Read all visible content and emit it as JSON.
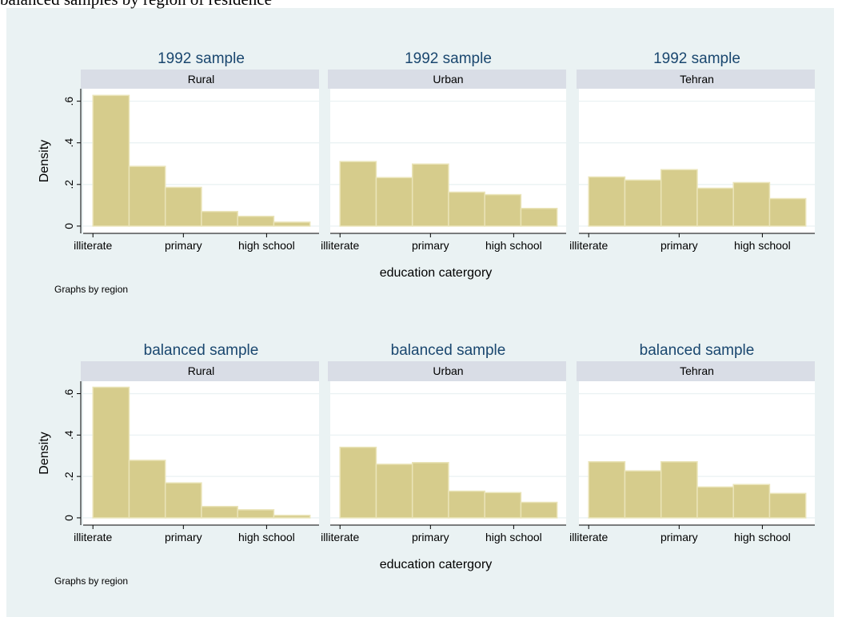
{
  "title": "balanced samples by region of residence",
  "chart_data": [
    {
      "type": "histogram",
      "y_label": "Density",
      "x_label": "education catergory",
      "note": "Graphs by region",
      "color": "#d6cc8c",
      "grid": true,
      "ylim": [
        -0.035,
        0.66
      ],
      "yticks": [
        0,
        {
          "value": 0.2,
          "label": ".2"
        },
        {
          "value": 0.4,
          "label": ".4"
        },
        {
          "value": 0.6,
          "label": ".6"
        }
      ],
      "xlim": [
        -0.27,
        6.25
      ],
      "xticks": [
        {
          "value": 0,
          "label": "illiterate"
        },
        {
          "value": 2.5,
          "label": "primary"
        },
        {
          "value": 4.8,
          "label": "high school"
        }
      ],
      "panels": [
        {
          "title": "1992 sample",
          "subtitle": "Rural",
          "bins": [
            0,
            1,
            2,
            3,
            4,
            5,
            6
          ],
          "values": [
            0.628,
            0.287,
            0.186,
            0.07,
            0.047,
            0.019
          ]
        },
        {
          "title": "1992 sample",
          "subtitle": "Urban",
          "bins": [
            0,
            1,
            2,
            3,
            4,
            5,
            6
          ],
          "values": [
            0.31,
            0.233,
            0.298,
            0.163,
            0.151,
            0.085
          ]
        },
        {
          "title": "1992 sample",
          "subtitle": "Tehran",
          "bins": [
            0,
            1,
            2,
            3,
            4,
            5,
            6
          ],
          "values": [
            0.236,
            0.221,
            0.271,
            0.182,
            0.209,
            0.132
          ]
        }
      ]
    },
    {
      "type": "histogram",
      "y_label": "Density",
      "x_label": "education catergory",
      "note": "Graphs by region",
      "color": "#d6cc8c",
      "grid": true,
      "ylim": [
        -0.035,
        0.66
      ],
      "yticks": [
        0,
        {
          "value": 0.2,
          "label": ".2"
        },
        {
          "value": 0.4,
          "label": ".4"
        },
        {
          "value": 0.6,
          "label": ".6"
        }
      ],
      "xlim": [
        -0.27,
        6.25
      ],
      "xticks": [
        {
          "value": 0,
          "label": "illiterate"
        },
        {
          "value": 2.5,
          "label": "primary"
        },
        {
          "value": 4.8,
          "label": "high school"
        }
      ],
      "panels": [
        {
          "title": "balanced sample",
          "subtitle": "Rural",
          "bins": [
            0,
            1,
            2,
            3,
            4,
            5,
            6
          ],
          "values": [
            0.631,
            0.278,
            0.169,
            0.055,
            0.039,
            0.012
          ]
        },
        {
          "title": "balanced sample",
          "subtitle": "Urban",
          "bins": [
            0,
            1,
            2,
            3,
            4,
            5,
            6
          ],
          "values": [
            0.341,
            0.259,
            0.267,
            0.129,
            0.122,
            0.075
          ]
        },
        {
          "title": "balanced sample",
          "subtitle": "Tehran",
          "bins": [
            0,
            1,
            2,
            3,
            4,
            5,
            6
          ],
          "values": [
            0.271,
            0.227,
            0.271,
            0.149,
            0.161,
            0.118
          ]
        }
      ]
    }
  ]
}
